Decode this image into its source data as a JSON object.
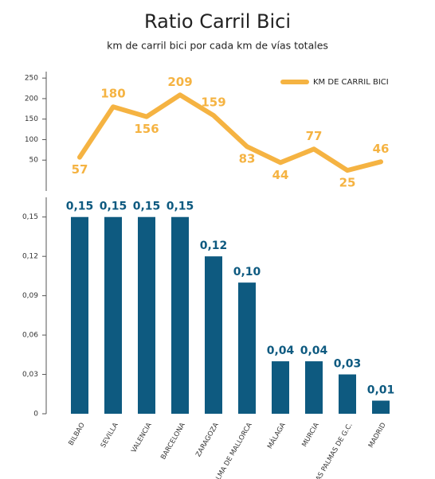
{
  "chart_data": [
    {
      "type": "line",
      "series": [
        {
          "name": "KM DE CARRIL BICI",
          "color": "#f5b342",
          "values": [
            57,
            180,
            156,
            209,
            159,
            83,
            44,
            77,
            25,
            46
          ]
        }
      ],
      "ylim": [
        0,
        260
      ],
      "yticks": [
        50,
        100,
        150,
        200,
        250
      ],
      "legend": "top-right"
    },
    {
      "type": "bar",
      "title": "Ratio Carril Bici",
      "subtitle": "km de carril bici por cada km de vías totales",
      "categories": [
        "BILBAO",
        "SEVILLA",
        "VALENCIA",
        "BARCELONA",
        "ZARAGOZA",
        "PALMA DE MALLORCA",
        "MÁLAGA",
        "MURCIA",
        "LAS PALMAS DE G.C.",
        "MADRID"
      ],
      "values": [
        0.15,
        0.15,
        0.15,
        0.15,
        0.12,
        0.1,
        0.04,
        0.04,
        0.03,
        0.01
      ],
      "value_labels": [
        "0,15",
        "0,15",
        "0,15",
        "0,15",
        "0,12",
        "0,10",
        "0,04",
        "0,04",
        "0,03",
        "0,01"
      ],
      "color": "#0e5a80",
      "ylim": [
        0,
        0.165
      ],
      "yticks": [
        0,
        {
          "value": 0.03,
          "label": "0,03"
        },
        {
          "value": 0.06,
          "label": "0,06"
        },
        {
          "value": 0.09,
          "label": "0,09"
        },
        {
          "value": 0.12,
          "label": "0,12"
        },
        {
          "value": 0.15,
          "label": "0,15"
        }
      ]
    }
  ]
}
